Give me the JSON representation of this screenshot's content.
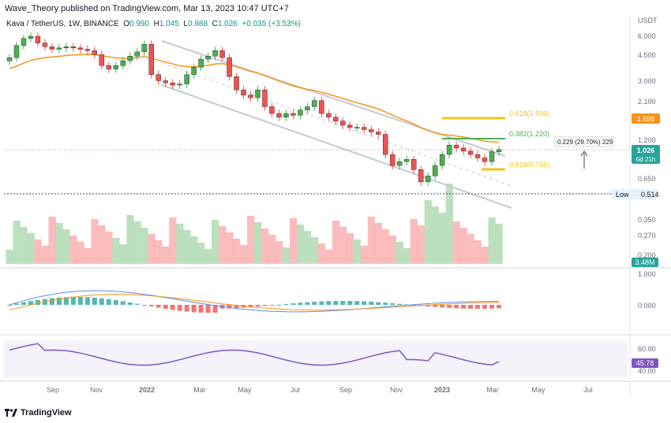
{
  "header": {
    "credit": "Wave_Theory published on TradingView.com, Mar 13, 2023 10:47 UTC+7",
    "symbol": "Kava / TetherUS, 1W, BINANCE",
    "o_label": "O",
    "o_value": "0.990",
    "h_label": "H",
    "h_value": "1.045",
    "l_label": "L",
    "l_value": "0.988",
    "c_label": "C",
    "c_value": "1.026",
    "change": "+0.035 (+3.53%)"
  },
  "currency": "USDT",
  "price_axis": {
    "ticks": [
      "6.000",
      "4.500",
      "3.000",
      "2.100",
      "1.200",
      "0.650",
      "0.350",
      "0.270",
      "0.200"
    ],
    "tick_values": [
      6.0,
      4.5,
      3.0,
      2.1,
      1.2,
      0.65,
      0.35,
      0.27,
      0.2
    ]
  },
  "badges": {
    "ema_value": "1.698",
    "price_value": "1.026",
    "countdown": "6d 21h",
    "low_label": "Low",
    "low_value": "0.514",
    "volume_value": "3.48M",
    "macd_top": "1.000",
    "macd_zero": "0.000",
    "rsi_top": "60.00",
    "rsi_value": "45.78",
    "rsi_bottom": "40.00"
  },
  "annotations": {
    "fib_618": "0.618(1.656)",
    "fib_382": "0.382(1.220)",
    "fib_618_low": "0.618(0.756)",
    "measure": "0.229 (29.70%) 229"
  },
  "time_axis": [
    "Sep",
    "Nov",
    "2022",
    "Mar",
    "May",
    "Jul",
    "Sep",
    "Nov",
    "2023",
    "Mar",
    "May",
    "Jul"
  ],
  "colors": {
    "up": "#26a69a",
    "up_fill": "#4caf50",
    "down": "#ef5350",
    "ema": "#f7931a",
    "fib_yellow": "#f5c518",
    "fib_green": "#4caf50",
    "channel": "#c7c9d1",
    "macd": "#5b8def",
    "signal": "#f7931a",
    "rsi": "#7e57c2"
  },
  "brand": "TradingView",
  "chart_data": {
    "type": "candlestick",
    "title": "Kava / TetherUS, 1W, BINANCE",
    "close_series_approx": [
      4.3,
      5.2,
      5.8,
      6.0,
      5.4,
      5.1,
      4.9,
      5.0,
      5.1,
      5.0,
      4.9,
      4.8,
      4.5,
      3.8,
      3.6,
      3.8,
      4.1,
      4.4,
      4.7,
      5.3,
      3.3,
      3.0,
      2.9,
      2.8,
      2.85,
      3.3,
      3.7,
      4.2,
      4.4,
      4.8,
      4.3,
      3.2,
      2.6,
      2.4,
      2.3,
      2.6,
      2.0,
      1.8,
      1.7,
      1.8,
      1.75,
      1.9,
      2.0,
      2.2,
      1.8,
      1.7,
      1.6,
      1.5,
      1.45,
      1.45,
      1.4,
      1.35,
      1.3,
      0.95,
      0.8,
      0.85,
      0.88,
      0.75,
      0.62,
      0.68,
      0.8,
      0.95,
      1.1,
      1.05,
      1.0,
      0.95,
      0.9,
      0.85,
      0.99,
      1.026
    ],
    "ema_label": "1.698",
    "fib_levels": [
      {
        "label": "0.618",
        "value": 1.656
      },
      {
        "label": "0.382",
        "value": 1.22
      },
      {
        "label": "0.618",
        "value": 0.756
      }
    ],
    "low": 0.514,
    "last": 1.026,
    "volume_last": "3.48M",
    "rsi_last": 45.78,
    "x_ticks": [
      "Sep",
      "Nov",
      "2022",
      "Mar",
      "May",
      "Jul",
      "Sep",
      "Nov",
      "2023",
      "Mar",
      "May",
      "Jul"
    ]
  }
}
